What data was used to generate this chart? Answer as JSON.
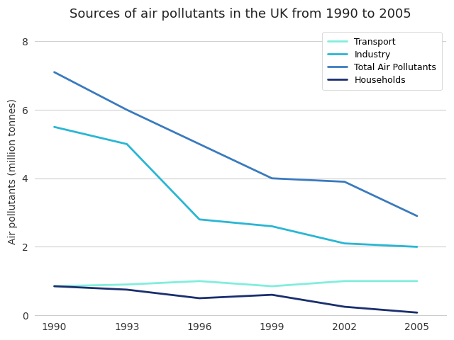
{
  "title": "Sources of air pollutants in the UK from 1990 to 2005",
  "ylabel": "Air pollutants (million tonnes)",
  "years": [
    1990,
    1993,
    1996,
    1999,
    2002,
    2005
  ],
  "series": {
    "Transport": {
      "values": [
        0.85,
        0.9,
        1.0,
        0.85,
        1.0,
        1.0
      ],
      "color": "#80eedc",
      "linewidth": 2.0
    },
    "Industry": {
      "values": [
        5.5,
        5.0,
        2.8,
        2.6,
        2.1,
        2.0
      ],
      "color": "#29b6d4",
      "linewidth": 2.0
    },
    "Total Air Pollutants": {
      "values": [
        7.1,
        6.0,
        5.0,
        4.0,
        3.9,
        2.9
      ],
      "color": "#3a7abf",
      "linewidth": 2.0
    },
    "Households": {
      "values": [
        0.85,
        0.75,
        0.5,
        0.6,
        0.25,
        0.08
      ],
      "color": "#1a2f6e",
      "linewidth": 2.0
    }
  },
  "ylim": [
    0,
    8.4
  ],
  "yticks": [
    0,
    2,
    4,
    6,
    8
  ],
  "xticks": [
    1990,
    1993,
    1996,
    1999,
    2002,
    2005
  ],
  "legend_order": [
    "Transport",
    "Industry",
    "Total Air Pollutants",
    "Households"
  ],
  "background_color": "#ffffff",
  "grid_color": "#d0d0d0",
  "title_fontsize": 13,
  "label_fontsize": 10,
  "tick_fontsize": 10
}
